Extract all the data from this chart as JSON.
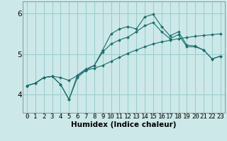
{
  "xlabel": "Humidex (Indice chaleur)",
  "bg_color": "#cce8e8",
  "grid_color": "#99cccc",
  "line_color": "#1a6e6e",
  "x": [
    0,
    1,
    2,
    3,
    4,
    5,
    6,
    7,
    8,
    9,
    10,
    11,
    12,
    13,
    14,
    15,
    16,
    17,
    18,
    19,
    20,
    21,
    22,
    23
  ],
  "line1": [
    4.22,
    4.28,
    4.42,
    4.45,
    4.42,
    4.35,
    4.47,
    4.6,
    4.65,
    4.72,
    4.82,
    4.92,
    5.02,
    5.1,
    5.18,
    5.25,
    5.3,
    5.34,
    5.38,
    5.41,
    5.44,
    5.46,
    5.48,
    5.5
  ],
  "line2": [
    4.22,
    4.28,
    4.42,
    4.45,
    4.25,
    3.88,
    4.42,
    4.6,
    4.72,
    5.05,
    5.25,
    5.35,
    5.42,
    5.55,
    5.7,
    5.78,
    5.55,
    5.38,
    5.48,
    5.18,
    5.18,
    5.1,
    4.88,
    4.95
  ],
  "line3": [
    4.22,
    4.28,
    4.42,
    4.45,
    4.25,
    3.88,
    4.48,
    4.63,
    4.72,
    5.1,
    5.5,
    5.62,
    5.68,
    5.62,
    5.92,
    5.98,
    5.68,
    5.45,
    5.55,
    5.22,
    5.2,
    5.1,
    4.88,
    4.95
  ],
  "ylim": [
    3.55,
    6.3
  ],
  "xlim": [
    -0.5,
    23.5
  ],
  "yticks": [
    4,
    5,
    6
  ],
  "font_size": 6.5,
  "marker_size": 2.0,
  "line_width": 0.8
}
